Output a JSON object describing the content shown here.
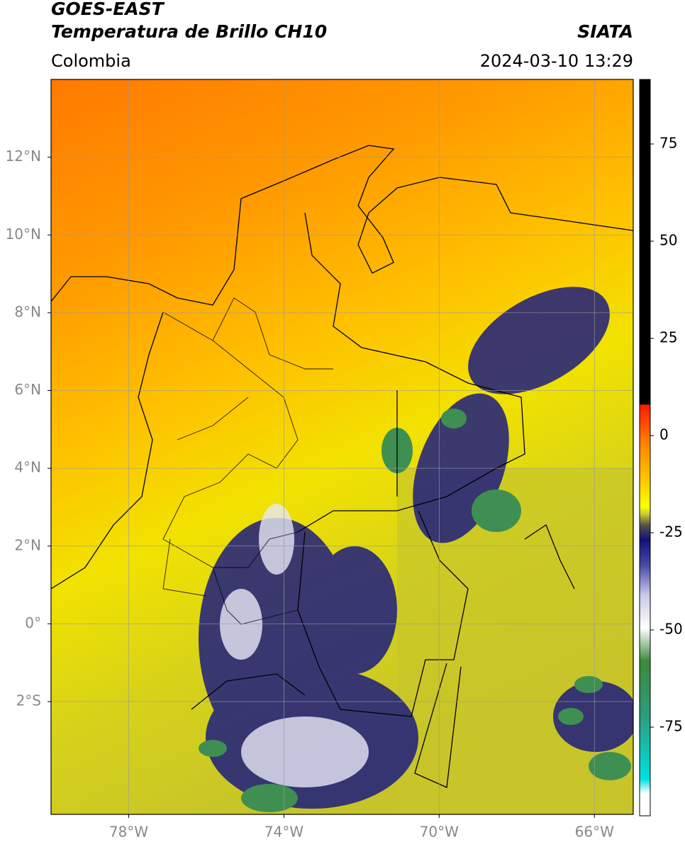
{
  "header": {
    "title_line1": "GOES-EAST",
    "title_line2": "Temperatura de Brillo CH10",
    "source": "SIATA",
    "region": "Colombia",
    "datetime": "2024-03-10 13:29"
  },
  "map": {
    "lon_range": [
      -80,
      -65
    ],
    "lat_range": [
      -4.9,
      14
    ],
    "xticks": [
      {
        "value": -78,
        "label": "78°W"
      },
      {
        "value": -74,
        "label": "74°W"
      },
      {
        "value": -70,
        "label": "70°W"
      },
      {
        "value": -66,
        "label": "66°W"
      }
    ],
    "yticks": [
      {
        "value": 12,
        "label": "12°N"
      },
      {
        "value": 10,
        "label": "10°N"
      },
      {
        "value": 8,
        "label": "8°N"
      },
      {
        "value": 6,
        "label": "6°N"
      },
      {
        "value": 4,
        "label": "4°N"
      },
      {
        "value": 2,
        "label": "2°N"
      },
      {
        "value": 0,
        "label": "0°"
      },
      {
        "value": -2,
        "label": "2°S"
      }
    ]
  },
  "colorbar": {
    "range": [
      -97.8,
      91.6
    ],
    "ticks": [
      75,
      50,
      25,
      0,
      -25,
      -50,
      -75
    ]
  }
}
